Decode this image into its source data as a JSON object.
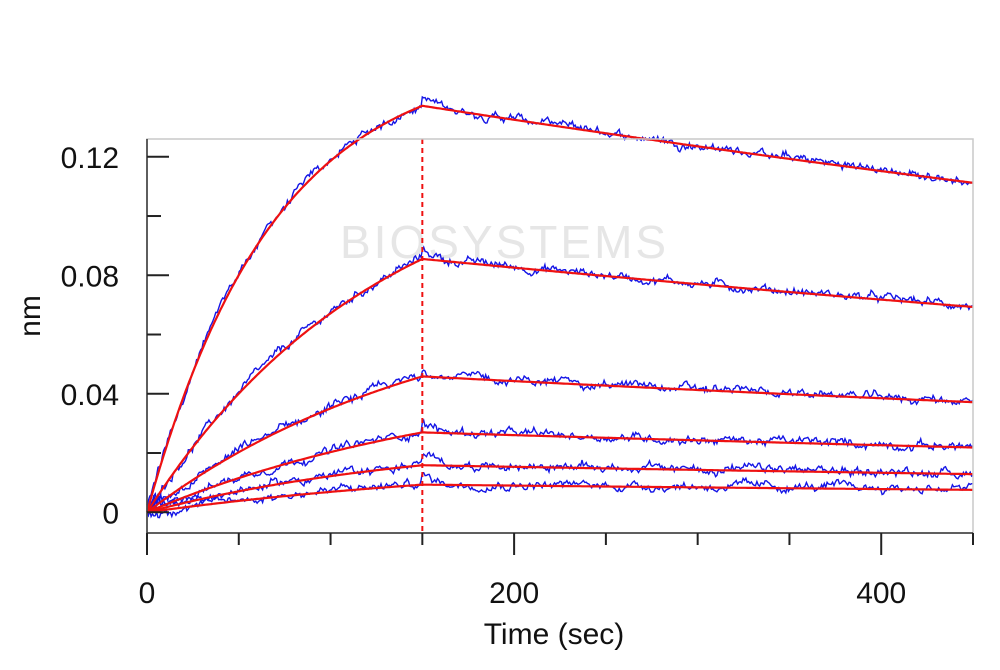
{
  "chart_data": {
    "type": "line",
    "title": "",
    "xlabel": "Time (sec)",
    "ylabel": "nm",
    "xlim": [
      0,
      450
    ],
    "ylim": [
      -0.007,
      0.126
    ],
    "x_ticks": [
      0,
      200,
      400
    ],
    "x_tick_labels": [
      "0",
      "200",
      "400"
    ],
    "x_minor_ticks": [
      50,
      100,
      150,
      250,
      300,
      350,
      450
    ],
    "y_ticks": [
      0,
      0.04,
      0.08,
      0.12
    ],
    "y_tick_labels": [
      "0",
      "0.04",
      "0.08",
      "0.12"
    ],
    "y_minor_ticks": [
      0.02,
      0.06,
      0.1
    ],
    "association_end": 150,
    "watermark": "BIOSYSTEMS",
    "colors": {
      "measured": "#1515e6",
      "fit": "#ee1111",
      "marker": "#ee1111",
      "frame": "#c8c8c8"
    },
    "series": [
      {
        "assoc_plateau": 0.1545,
        "assoc_rate": 0.0146,
        "dissoc_rate": 0.0007
      },
      {
        "assoc_plateau": 0.124,
        "assoc_rate": 0.0078,
        "dissoc_rate": 0.0007
      },
      {
        "assoc_plateau": 0.075,
        "assoc_rate": 0.0063,
        "dissoc_rate": 0.0007
      },
      {
        "assoc_plateau": 0.048,
        "assoc_rate": 0.0055,
        "dissoc_rate": 0.0007
      },
      {
        "assoc_plateau": 0.0255,
        "assoc_rate": 0.0065,
        "dissoc_rate": 0.0007
      },
      {
        "assoc_plateau": 0.019,
        "assoc_rate": 0.0045,
        "dissoc_rate": 0.0007
      }
    ],
    "legend": "none",
    "grid": false
  }
}
